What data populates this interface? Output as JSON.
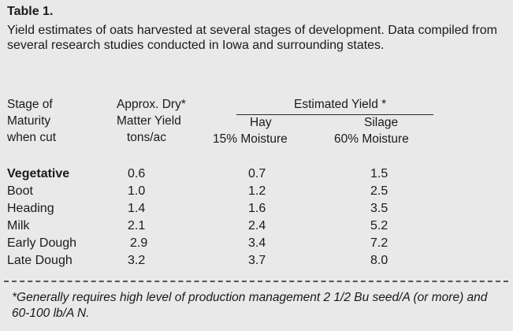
{
  "title": "Table 1.",
  "caption": "Yield estimates of oats harvested at several stages of development. Data compiled  from several research studies conducted in Iowa and surrounding states.",
  "headers": {
    "stage": [
      "Stage of",
      "Maturity",
      "when cut"
    ],
    "dry_matter": [
      "Approx. Dry*",
      "Matter Yield",
      "tons/ac"
    ],
    "estimated_yield": "Estimated  Yield *",
    "hay": [
      "Hay",
      "15% Moisture"
    ],
    "silage": [
      "Silage",
      "60% Moisture"
    ]
  },
  "rows": [
    {
      "stage": "Vegetative",
      "dry": "0.6",
      "hay": "0.7",
      "silage": "1.5"
    },
    {
      "stage": "Boot",
      "dry": "1.0",
      "hay": "1.2",
      "silage": "2.5"
    },
    {
      "stage": "Heading",
      "dry": "1.4",
      "hay": "1.6",
      "silage": "3.5"
    },
    {
      "stage": "Milk",
      "dry": "2.1",
      "hay": "2.4",
      "silage": "5.2"
    },
    {
      "stage": "Early Dough",
      "dry": "2.9",
      "hay": "3.4",
      "silage": "7.2"
    },
    {
      "stage": "Late Dough",
      "dry": "3.2",
      "hay": "3.7",
      "silage": "8.0"
    }
  ],
  "footnote": "*Generally requires high level of production management 2 1/2 Bu seed/A (or more) and 60-100 lb/A N."
}
